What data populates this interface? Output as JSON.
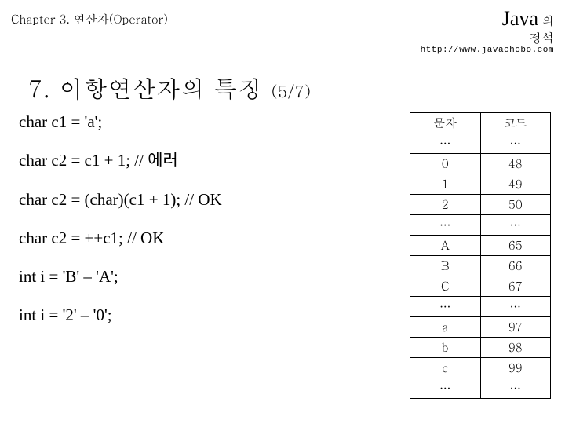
{
  "header": {
    "chapter": "Chapter 3. 연산자(Operator)",
    "brand_java": "Java",
    "brand_sub1": "의",
    "brand_sub2": "정석",
    "url": "http://www.javachobo.com"
  },
  "section": {
    "number": "7.",
    "title": "이항연산자의 특징",
    "sub": "(5/7)"
  },
  "code": {
    "l1": "char c1 = 'a';",
    "l2": "char c2 = c1 + 1; // 에러",
    "l3": "char c2 = (char)(c1 + 1); // OK",
    "l4": "char c2 = ++c1; // OK",
    "l5": "int i = 'B' – 'A';",
    "l6": "int i = '2' – '0';"
  },
  "table": {
    "head_char": "문자",
    "head_code": "코드",
    "rows": [
      {
        "c": "…",
        "v": "…"
      },
      {
        "c": "0",
        "v": "48"
      },
      {
        "c": "1",
        "v": "49"
      },
      {
        "c": "2",
        "v": "50"
      },
      {
        "c": "…",
        "v": "…"
      },
      {
        "c": "A",
        "v": "65"
      },
      {
        "c": "B",
        "v": "66"
      },
      {
        "c": "C",
        "v": "67"
      },
      {
        "c": "…",
        "v": "…"
      },
      {
        "c": "a",
        "v": "97"
      },
      {
        "c": "b",
        "v": "98"
      },
      {
        "c": "c",
        "v": "99"
      },
      {
        "c": "…",
        "v": "…"
      }
    ]
  }
}
